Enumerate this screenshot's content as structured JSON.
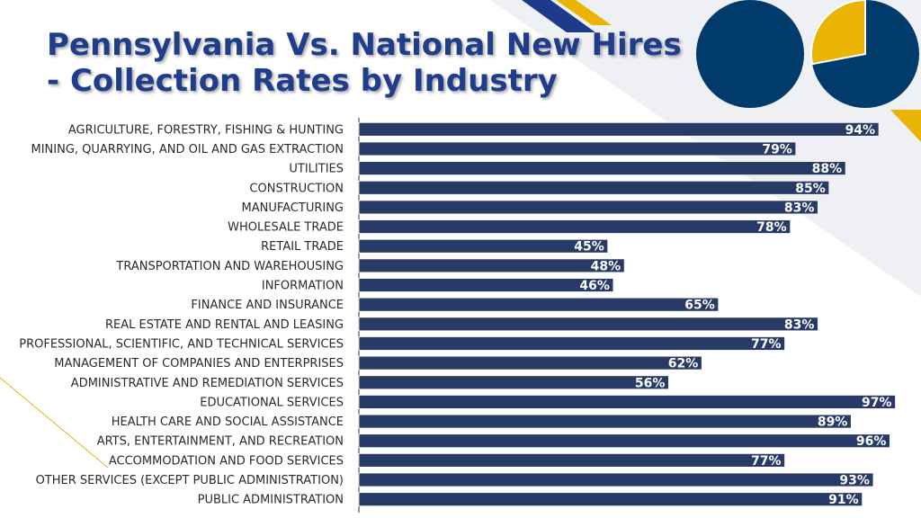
{
  "title_line1": "Pennsylvania Vs. National New Hires",
  "title_line2": "- Collection Rates by Industry",
  "colors": {
    "bar": "#283a66",
    "bar_edge": "#ffffff",
    "title": "#1f3d8a",
    "pie_navy": "#003b6b",
    "pie_gold": "#e9b404",
    "accent_gold": "#e9b404",
    "accent_navy": "#1e3a8a"
  },
  "chart_data": {
    "type": "bar",
    "orientation": "horizontal",
    "categories": [
      "AGRICULTURE, FORESTRY, FISHING & HUNTING",
      "MINING, QUARRYING, AND OIL AND GAS EXTRACTION",
      "UTILITIES",
      "CONSTRUCTION",
      "MANUFACTURING",
      "WHOLESALE TRADE",
      "RETAIL TRADE",
      "TRANSPORTATION AND WAREHOUSING",
      "INFORMATION",
      "FINANCE AND INSURANCE",
      "REAL ESTATE AND RENTAL AND LEASING",
      "PROFESSIONAL, SCIENTIFIC, AND TECHNICAL SERVICES",
      "MANAGEMENT OF COMPANIES AND ENTERPRISES",
      "ADMINISTRATIVE AND REMEDIATION SERVICES",
      "EDUCATIONAL SERVICES",
      "HEALTH CARE AND SOCIAL ASSISTANCE",
      "ARTS, ENTERTAINMENT, AND RECREATION",
      "ACCOMMODATION AND FOOD SERVICES",
      "OTHER SERVICES (EXCEPT PUBLIC ADMINISTRATION)",
      "PUBLIC ADMINISTRATION"
    ],
    "values": [
      94,
      79,
      88,
      85,
      83,
      78,
      45,
      48,
      46,
      65,
      83,
      77,
      62,
      56,
      97,
      89,
      96,
      77,
      93,
      91
    ],
    "value_labels": [
      "94%",
      "79%",
      "88%",
      "85%",
      "83%",
      "78%",
      "45%",
      "48%",
      "46%",
      "65%",
      "83%",
      "77%",
      "62%",
      "56%",
      "97%",
      "89%",
      "96%",
      "77%",
      "93%",
      "91%"
    ],
    "xlim": [
      0,
      100
    ],
    "grid": false,
    "legend": "none"
  },
  "decor_pies": [
    {
      "name": "pie-full",
      "fraction_gold": 0
    },
    {
      "name": "pie-partial",
      "fraction_gold": 0.28
    }
  ]
}
